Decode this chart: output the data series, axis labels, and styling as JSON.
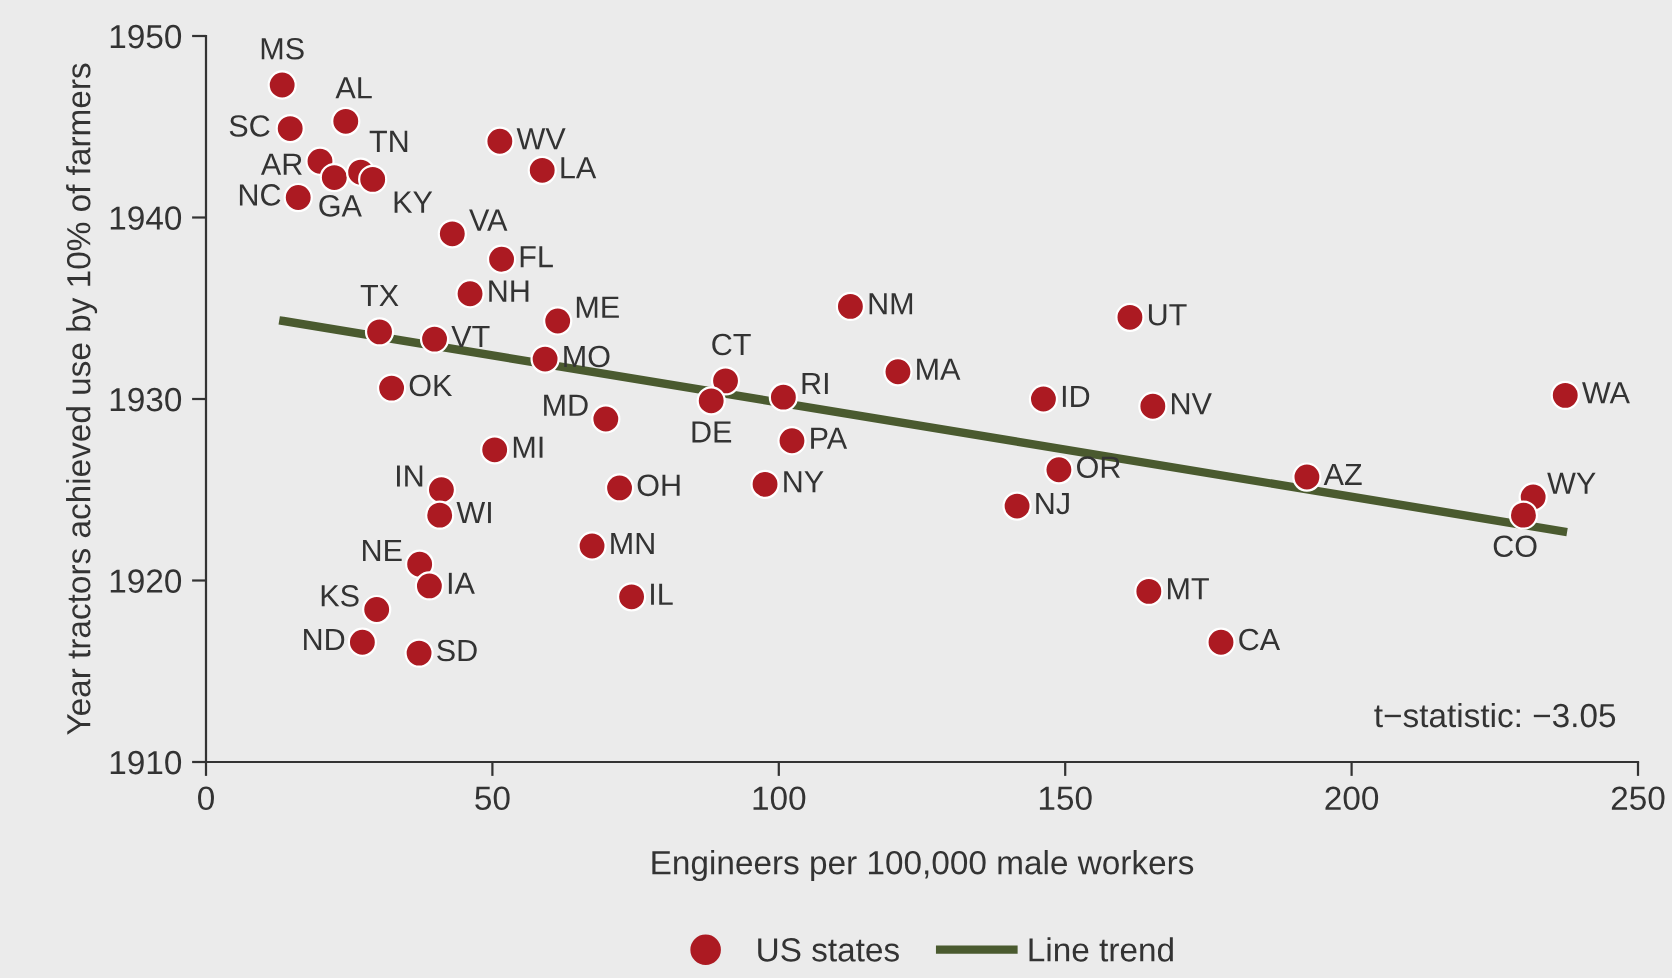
{
  "chart_data": {
    "type": "scatter",
    "xlabel": "Engineers per 100,000 male workers",
    "ylabel": "Year tractors achieved use by 10% of farmers",
    "xlim": [
      0,
      250
    ],
    "xticks": [
      0,
      50,
      100,
      150,
      200,
      250
    ],
    "ylim": [
      1910,
      1950
    ],
    "yticks": [
      1910,
      1920,
      1930,
      1940,
      1950
    ],
    "grid": false,
    "legend": "bottom",
    "annotations": [
      "t−statistic: −3.05"
    ],
    "series": [
      {
        "name": "US states",
        "marker": "circle",
        "color": "#ac1a22",
        "x": [
          13.3,
          24.4,
          14.7,
          19.9,
          22.4,
          27.0,
          29.1,
          16.1,
          51.3,
          58.7,
          43.0,
          51.6,
          46.1,
          61.4,
          30.3,
          39.9,
          59.2,
          32.4,
          69.8,
          50.4,
          41.1,
          40.8,
          72.2,
          67.4,
          37.3,
          39.0,
          74.3,
          29.8,
          27.3,
          37.2,
          112.5,
          90.7,
          88.2,
          100.8,
          120.8,
          102.3,
          97.6,
          146.2,
          148.9,
          141.6,
          161.3,
          165.3,
          192.2,
          237.3,
          231.7,
          230.0,
          164.6,
          177.2
        ],
        "values": [
          1947.3,
          1945.3,
          1944.9,
          1943.1,
          1942.2,
          1942.5,
          1942.1,
          1941.1,
          1944.2,
          1942.6,
          1939.1,
          1937.7,
          1935.8,
          1934.3,
          1933.7,
          1933.3,
          1932.2,
          1930.6,
          1928.9,
          1927.2,
          1925.0,
          1923.6,
          1925.1,
          1921.9,
          1920.9,
          1919.7,
          1919.1,
          1918.4,
          1916.6,
          1916.0,
          1935.1,
          1931.0,
          1929.9,
          1930.1,
          1931.5,
          1927.7,
          1925.3,
          1930.0,
          1926.1,
          1924.1,
          1934.5,
          1929.6,
          1925.7,
          1930.2,
          1924.6,
          1923.6,
          1919.4,
          1916.6
        ],
        "value_labels": [
          "MS",
          "AL",
          "SC",
          "AR",
          "GA",
          "TN",
          "KY",
          "NC",
          "WV",
          "LA",
          "VA",
          "FL",
          "NH",
          "ME",
          "TX",
          "VT",
          "MO",
          "OK",
          "MD",
          "MI",
          "IN",
          "WI",
          "OH",
          "MN",
          "NE",
          "IA",
          "IL",
          "KS",
          "ND",
          "SD",
          "NM",
          "CT",
          "DE",
          "RI",
          "MA",
          "PA",
          "NY",
          "ID",
          "OR",
          "NJ",
          "UT",
          "NV",
          "AZ",
          "WA",
          "WY",
          "CO",
          "MT",
          "CA"
        ]
      },
      {
        "name": "Line trend",
        "type": "line",
        "color": "#4a5a2f",
        "line_style": "solid",
        "x": [
          13.5,
          236.9
        ],
        "values": [
          1934.3,
          1922.7
        ]
      }
    ]
  }
}
